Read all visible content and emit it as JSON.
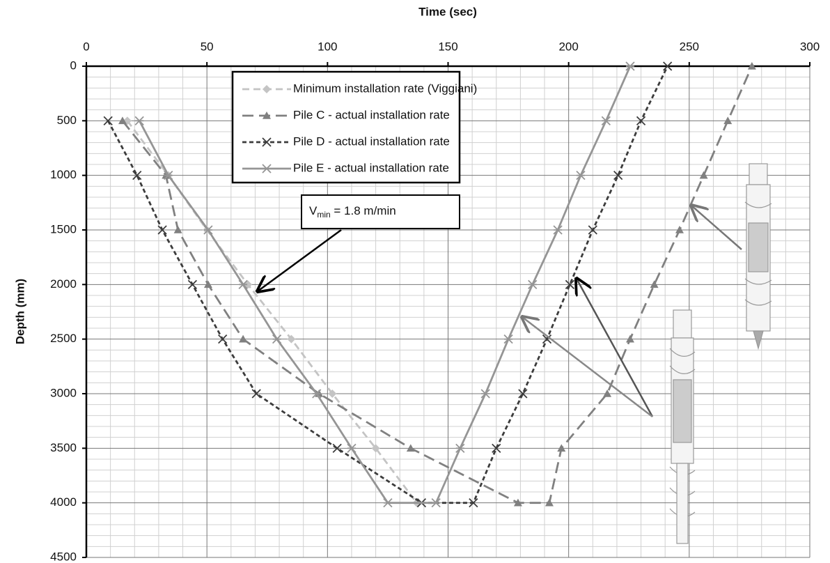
{
  "chart_data": {
    "type": "line",
    "title": "Time (sec)",
    "y_label": "Depth (mm)",
    "xlim": [
      0,
      300
    ],
    "xticks": [
      0,
      50,
      100,
      150,
      200,
      250,
      300
    ],
    "ylim": [
      0,
      4500
    ],
    "yticks": [
      0,
      500,
      1000,
      1500,
      2000,
      2500,
      3000,
      3500,
      4000,
      4500
    ],
    "y_inverted": true,
    "x_axis_position": "top",
    "grid": true,
    "series": [
      {
        "name": "Minimum installation rate (Viggiani)",
        "color": "#c4c4c4",
        "linestyle": "dashed",
        "marker": "diamond",
        "x": [
          17,
          34,
          50,
          67,
          85,
          102,
          120,
          137
        ],
        "values": [
          500,
          1000,
          1500,
          2000,
          2500,
          3000,
          3500,
          4000
        ]
      },
      {
        "name": "Pile C - actual installation rate",
        "color": "#808080",
        "linestyle": "longdash",
        "marker": "triangle",
        "x": [
          15,
          33,
          38,
          50.5,
          65,
          96.5,
          134.5,
          179,
          192,
          197,
          216,
          225.5,
          235.5,
          246,
          256,
          266,
          276
        ],
        "values": [
          500,
          1000,
          1500,
          2000,
          2500,
          3000,
          3500,
          4000,
          4000,
          3500,
          3000,
          2500,
          2000,
          1500,
          1000,
          500,
          0
        ]
      },
      {
        "name": "Pile D - actual installation rate",
        "color": "#3c3c3c",
        "linestyle": "shortdash",
        "marker": "x",
        "x": [
          9,
          21,
          31.5,
          44,
          56.5,
          70.5,
          104,
          139,
          160.5,
          170,
          181,
          191,
          200.5,
          210,
          220.5,
          230,
          241
        ],
        "values": [
          500,
          1000,
          1500,
          2000,
          2500,
          3000,
          3500,
          4000,
          4000,
          3500,
          3000,
          2500,
          2000,
          1500,
          1000,
          500,
          0
        ]
      },
      {
        "name": "Pile E - actual installation rate",
        "color": "#959595",
        "linestyle": "solid",
        "marker": "star",
        "x": [
          22,
          34,
          50.5,
          65,
          79,
          95.5,
          110,
          125,
          145,
          155,
          165.5,
          175,
          185,
          195.5,
          205,
          215.5,
          225.5
        ],
        "values": [
          500,
          1000,
          1500,
          2000,
          2500,
          3000,
          3500,
          4000,
          4000,
          3500,
          3000,
          2500,
          2000,
          1500,
          1000,
          500,
          0
        ]
      }
    ],
    "annotation": {
      "symbol": "V",
      "subscript": "min",
      "text": " = 1.8 m/min"
    }
  }
}
